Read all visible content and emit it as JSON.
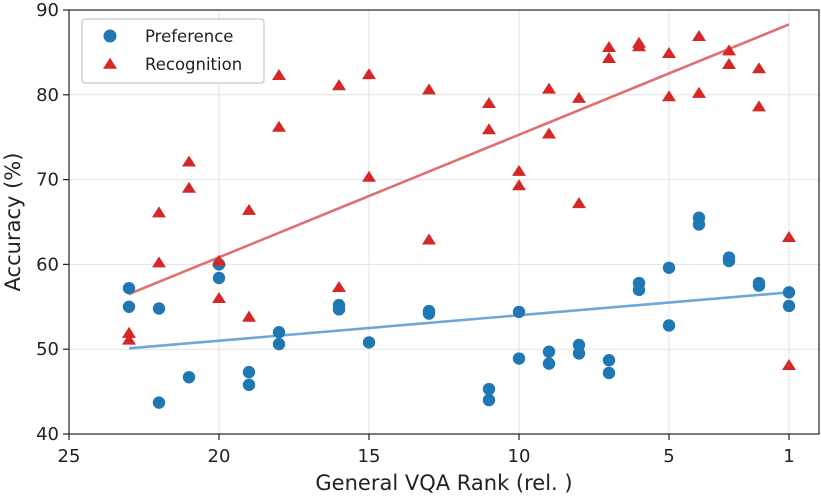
{
  "chart_data": {
    "type": "scatter",
    "title": "",
    "xlabel": "General VQA Rank (rel. )",
    "ylabel": "Accuracy (%)",
    "x_axis_reversed": true,
    "xlim": [
      25,
      0
    ],
    "ylim": [
      40,
      90
    ],
    "xticks": [
      25,
      20,
      15,
      10,
      5,
      1
    ],
    "yticks": [
      40,
      50,
      60,
      70,
      80,
      90
    ],
    "grid": true,
    "legend_position": "top-left",
    "colors": {
      "preference": "#1f77b4",
      "recognition": "#d62728",
      "preference_fit": "#6fa8d6",
      "recognition_fit": "#e07070"
    },
    "series": [
      {
        "name": "Preference",
        "marker": "circle",
        "points": [
          [
            23,
            57.2
          ],
          [
            23,
            55.0
          ],
          [
            22,
            54.8
          ],
          [
            22,
            43.7
          ],
          [
            21,
            46.7
          ],
          [
            20,
            60.0
          ],
          [
            20,
            58.4
          ],
          [
            19,
            47.3
          ],
          [
            19,
            45.8
          ],
          [
            18,
            52.0
          ],
          [
            18,
            50.6
          ],
          [
            16,
            55.2
          ],
          [
            16,
            54.7
          ],
          [
            15,
            50.8
          ],
          [
            13,
            54.5
          ],
          [
            13,
            54.2
          ],
          [
            11,
            45.3
          ],
          [
            11,
            44.0
          ],
          [
            10,
            54.4
          ],
          [
            10,
            48.9
          ],
          [
            9,
            49.7
          ],
          [
            9,
            48.3
          ],
          [
            8,
            50.5
          ],
          [
            8,
            49.5
          ],
          [
            7,
            48.7
          ],
          [
            7,
            47.2
          ],
          [
            6,
            57.8
          ],
          [
            6,
            57.0
          ],
          [
            5,
            59.6
          ],
          [
            5,
            52.8
          ],
          [
            4,
            65.5
          ],
          [
            4,
            64.7
          ],
          [
            3,
            60.8
          ],
          [
            3,
            60.4
          ],
          [
            2,
            57.8
          ],
          [
            2,
            57.5
          ],
          [
            1,
            56.7
          ],
          [
            1,
            55.1
          ]
        ],
        "trend": {
          "x": [
            23,
            1
          ],
          "y": [
            50.1,
            56.7
          ]
        }
      },
      {
        "name": "Recognition",
        "marker": "triangle",
        "points": [
          [
            23,
            51.9
          ],
          [
            23,
            51.1
          ],
          [
            22,
            66.1
          ],
          [
            22,
            60.2
          ],
          [
            21,
            72.1
          ],
          [
            21,
            69.0
          ],
          [
            20,
            60.4
          ],
          [
            20,
            56.0
          ],
          [
            19,
            66.4
          ],
          [
            19,
            53.8
          ],
          [
            18,
            82.3
          ],
          [
            18,
            76.2
          ],
          [
            16,
            81.1
          ],
          [
            16,
            57.3
          ],
          [
            15,
            82.4
          ],
          [
            15,
            70.3
          ],
          [
            13,
            80.6
          ],
          [
            13,
            62.9
          ],
          [
            11,
            79.0
          ],
          [
            11,
            75.9
          ],
          [
            10,
            71.0
          ],
          [
            10,
            69.3
          ],
          [
            9,
            80.7
          ],
          [
            9,
            75.4
          ],
          [
            8,
            79.6
          ],
          [
            8,
            67.2
          ],
          [
            7,
            85.6
          ],
          [
            7,
            84.3
          ],
          [
            6,
            86.1
          ],
          [
            6,
            85.7
          ],
          [
            5,
            84.9
          ],
          [
            5,
            79.8
          ],
          [
            4,
            86.9
          ],
          [
            4,
            80.2
          ],
          [
            3,
            85.2
          ],
          [
            3,
            83.6
          ],
          [
            2,
            83.1
          ],
          [
            2,
            78.6
          ],
          [
            1,
            63.2
          ],
          [
            1,
            48.1
          ]
        ],
        "trend": {
          "x": [
            23,
            1
          ],
          "y": [
            56.5,
            88.3
          ]
        }
      }
    ]
  }
}
